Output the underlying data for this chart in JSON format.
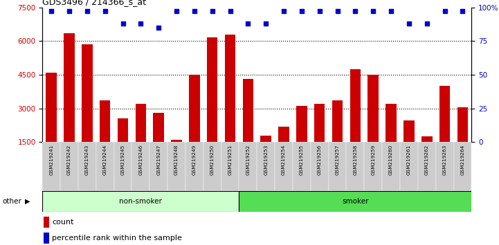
{
  "title": "GDS3496 / 214366_s_at",
  "categories": [
    "GSM219241",
    "GSM219242",
    "GSM219243",
    "GSM219244",
    "GSM219245",
    "GSM219246",
    "GSM219247",
    "GSM219248",
    "GSM219249",
    "GSM219250",
    "GSM219251",
    "GSM219252",
    "GSM219253",
    "GSM219254",
    "GSM219255",
    "GSM219256",
    "GSM219257",
    "GSM219258",
    "GSM219259",
    "GSM219260",
    "GSM219261",
    "GSM219262",
    "GSM219263",
    "GSM219264"
  ],
  "bar_values": [
    4600,
    6350,
    5850,
    3350,
    2550,
    3200,
    2800,
    1600,
    4500,
    6150,
    6300,
    4300,
    1800,
    2200,
    3100,
    3200,
    3350,
    4750,
    4500,
    3200,
    2450,
    1750,
    4000,
    3050
  ],
  "percentile_values": [
    97,
    97,
    97,
    97,
    88,
    88,
    85,
    97,
    97,
    97,
    97,
    88,
    88,
    97,
    97,
    97,
    97,
    97,
    97,
    97,
    88,
    88,
    97,
    97
  ],
  "non_smoker_count": 11,
  "smoker_count": 13,
  "bar_color": "#cc0000",
  "dot_color": "#0000cc",
  "non_smoker_bg": "#ccffcc",
  "smoker_bg": "#55dd55",
  "label_bg": "#cccccc",
  "ylim_left": [
    1500,
    7500
  ],
  "ylim_right": [
    0,
    100
  ],
  "yticks_left": [
    1500,
    3000,
    4500,
    6000,
    7500
  ],
  "yticks_right": [
    0,
    25,
    50,
    75,
    100
  ],
  "grid_values": [
    3000,
    4500,
    6000
  ],
  "legend_count_label": "count",
  "legend_pct_label": "percentile rank within the sample",
  "other_label": "other"
}
